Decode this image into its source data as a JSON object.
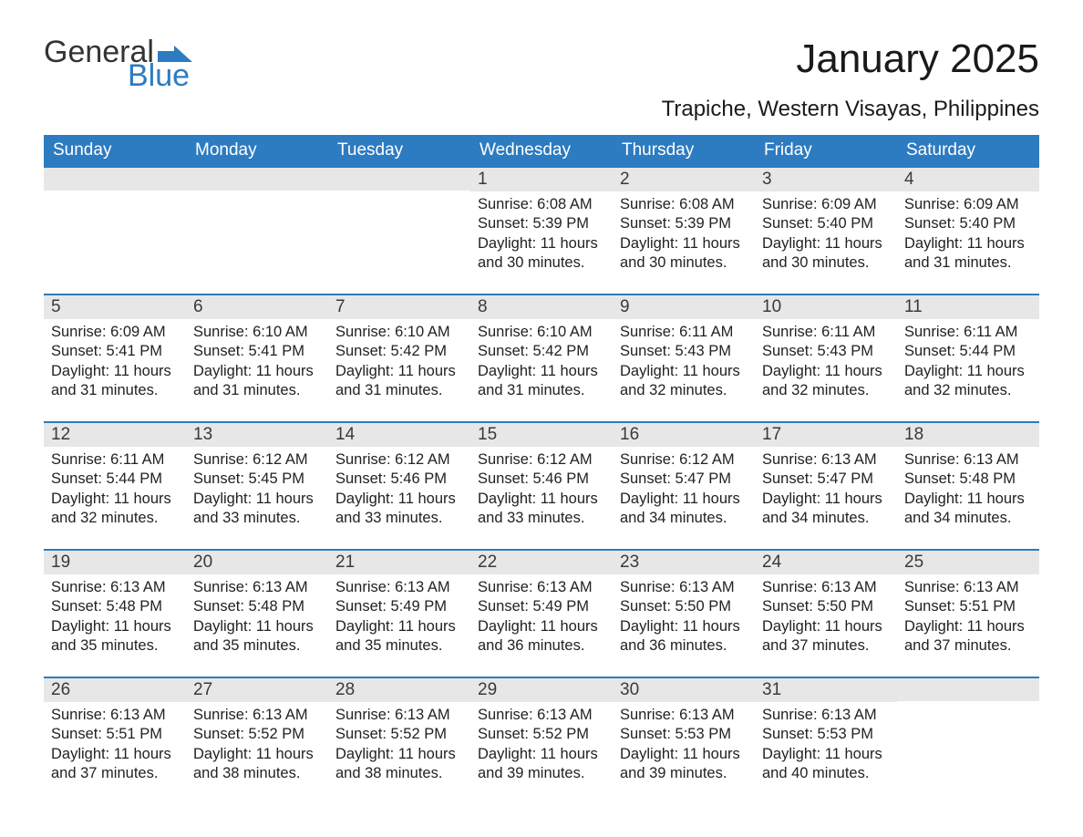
{
  "logo": {
    "text_general": "General",
    "text_blue": "Blue",
    "shape_color": "#2d7bc0"
  },
  "title": "January 2025",
  "location": "Trapiche, Western Visayas, Philippines",
  "colors": {
    "header_bg": "#2d7bc0",
    "header_text": "#ffffff",
    "daynum_bg": "#e7e7e7",
    "daynum_text": "#3a3a3a",
    "body_text": "#222222",
    "week_border": "#2d7bc0",
    "page_bg": "#ffffff"
  },
  "typography": {
    "title_fontsize_pt": 33,
    "location_fontsize_pt": 18,
    "dow_fontsize_pt": 14,
    "daynum_fontsize_pt": 14,
    "body_fontsize_pt": 12
  },
  "days_of_week": [
    "Sunday",
    "Monday",
    "Tuesday",
    "Wednesday",
    "Thursday",
    "Friday",
    "Saturday"
  ],
  "labels": {
    "sunrise": "Sunrise:",
    "sunset": "Sunset:",
    "daylight": "Daylight:"
  },
  "weeks": [
    [
      null,
      null,
      null,
      {
        "day": "1",
        "sunrise": "6:08 AM",
        "sunset": "5:39 PM",
        "daylight": "11 hours and 30 minutes."
      },
      {
        "day": "2",
        "sunrise": "6:08 AM",
        "sunset": "5:39 PM",
        "daylight": "11 hours and 30 minutes."
      },
      {
        "day": "3",
        "sunrise": "6:09 AM",
        "sunset": "5:40 PM",
        "daylight": "11 hours and 30 minutes."
      },
      {
        "day": "4",
        "sunrise": "6:09 AM",
        "sunset": "5:40 PM",
        "daylight": "11 hours and 31 minutes."
      }
    ],
    [
      {
        "day": "5",
        "sunrise": "6:09 AM",
        "sunset": "5:41 PM",
        "daylight": "11 hours and 31 minutes."
      },
      {
        "day": "6",
        "sunrise": "6:10 AM",
        "sunset": "5:41 PM",
        "daylight": "11 hours and 31 minutes."
      },
      {
        "day": "7",
        "sunrise": "6:10 AM",
        "sunset": "5:42 PM",
        "daylight": "11 hours and 31 minutes."
      },
      {
        "day": "8",
        "sunrise": "6:10 AM",
        "sunset": "5:42 PM",
        "daylight": "11 hours and 31 minutes."
      },
      {
        "day": "9",
        "sunrise": "6:11 AM",
        "sunset": "5:43 PM",
        "daylight": "11 hours and 32 minutes."
      },
      {
        "day": "10",
        "sunrise": "6:11 AM",
        "sunset": "5:43 PM",
        "daylight": "11 hours and 32 minutes."
      },
      {
        "day": "11",
        "sunrise": "6:11 AM",
        "sunset": "5:44 PM",
        "daylight": "11 hours and 32 minutes."
      }
    ],
    [
      {
        "day": "12",
        "sunrise": "6:11 AM",
        "sunset": "5:44 PM",
        "daylight": "11 hours and 32 minutes."
      },
      {
        "day": "13",
        "sunrise": "6:12 AM",
        "sunset": "5:45 PM",
        "daylight": "11 hours and 33 minutes."
      },
      {
        "day": "14",
        "sunrise": "6:12 AM",
        "sunset": "5:46 PM",
        "daylight": "11 hours and 33 minutes."
      },
      {
        "day": "15",
        "sunrise": "6:12 AM",
        "sunset": "5:46 PM",
        "daylight": "11 hours and 33 minutes."
      },
      {
        "day": "16",
        "sunrise": "6:12 AM",
        "sunset": "5:47 PM",
        "daylight": "11 hours and 34 minutes."
      },
      {
        "day": "17",
        "sunrise": "6:13 AM",
        "sunset": "5:47 PM",
        "daylight": "11 hours and 34 minutes."
      },
      {
        "day": "18",
        "sunrise": "6:13 AM",
        "sunset": "5:48 PM",
        "daylight": "11 hours and 34 minutes."
      }
    ],
    [
      {
        "day": "19",
        "sunrise": "6:13 AM",
        "sunset": "5:48 PM",
        "daylight": "11 hours and 35 minutes."
      },
      {
        "day": "20",
        "sunrise": "6:13 AM",
        "sunset": "5:48 PM",
        "daylight": "11 hours and 35 minutes."
      },
      {
        "day": "21",
        "sunrise": "6:13 AM",
        "sunset": "5:49 PM",
        "daylight": "11 hours and 35 minutes."
      },
      {
        "day": "22",
        "sunrise": "6:13 AM",
        "sunset": "5:49 PM",
        "daylight": "11 hours and 36 minutes."
      },
      {
        "day": "23",
        "sunrise": "6:13 AM",
        "sunset": "5:50 PM",
        "daylight": "11 hours and 36 minutes."
      },
      {
        "day": "24",
        "sunrise": "6:13 AM",
        "sunset": "5:50 PM",
        "daylight": "11 hours and 37 minutes."
      },
      {
        "day": "25",
        "sunrise": "6:13 AM",
        "sunset": "5:51 PM",
        "daylight": "11 hours and 37 minutes."
      }
    ],
    [
      {
        "day": "26",
        "sunrise": "6:13 AM",
        "sunset": "5:51 PM",
        "daylight": "11 hours and 37 minutes."
      },
      {
        "day": "27",
        "sunrise": "6:13 AM",
        "sunset": "5:52 PM",
        "daylight": "11 hours and 38 minutes."
      },
      {
        "day": "28",
        "sunrise": "6:13 AM",
        "sunset": "5:52 PM",
        "daylight": "11 hours and 38 minutes."
      },
      {
        "day": "29",
        "sunrise": "6:13 AM",
        "sunset": "5:52 PM",
        "daylight": "11 hours and 39 minutes."
      },
      {
        "day": "30",
        "sunrise": "6:13 AM",
        "sunset": "5:53 PM",
        "daylight": "11 hours and 39 minutes."
      },
      {
        "day": "31",
        "sunrise": "6:13 AM",
        "sunset": "5:53 PM",
        "daylight": "11 hours and 40 minutes."
      },
      null
    ]
  ]
}
